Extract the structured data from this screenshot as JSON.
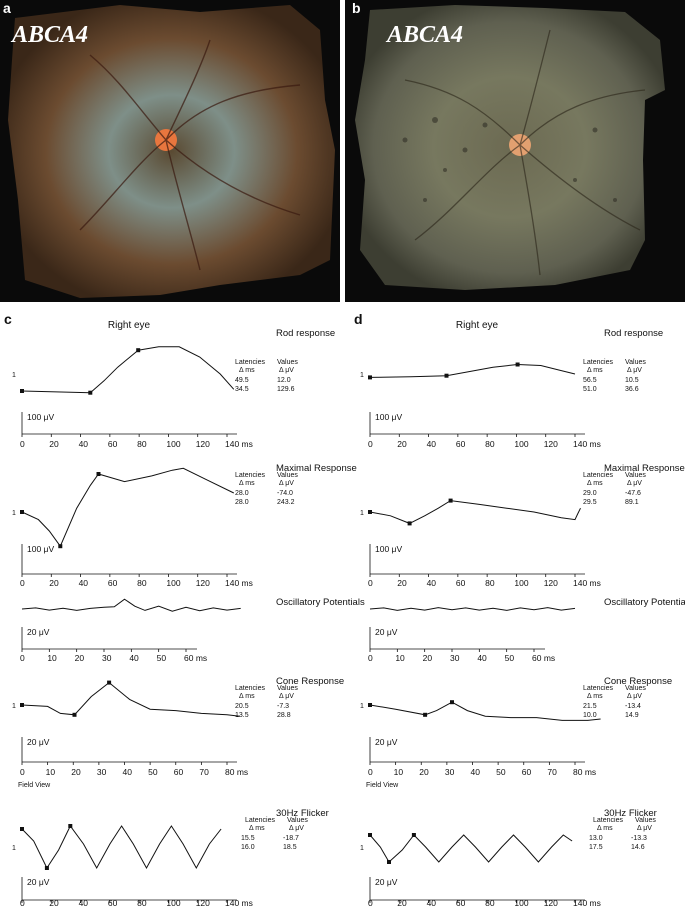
{
  "photos": [
    {
      "id": "a",
      "letter": "a",
      "gene": "ABCA4",
      "fundus": "#6b4b30",
      "halo": "#7e8f88",
      "disc": "#e8763e",
      "edge": "#1a1a1a"
    },
    {
      "id": "b",
      "letter": "b",
      "gene": "ABCA4",
      "fundus": "#5f6050",
      "halo": "#77785f",
      "disc": "#e2a070",
      "edge": "#1a1a1a"
    }
  ],
  "panels": [
    {
      "letter": "c",
      "eye_title": "Right eye",
      "field_view": "Field View",
      "sections": [
        {
          "title": "Rod response",
          "latency_header": [
            "Latencies",
            "Δ ms"
          ],
          "value_header": [
            "Values",
            "Δ μV"
          ],
          "latencies": [
            "49.5",
            "34.5"
          ],
          "values": [
            "12.0",
            "129.6"
          ],
          "scale": "100 μV",
          "ticks": [
            "0",
            "20",
            "40",
            "60",
            "80",
            "100",
            "120",
            "140 ms"
          ],
          "trace": [
            [
              0,
              -0.5
            ],
            [
              50,
              -0.55
            ],
            [
              60,
              -0.2
            ],
            [
              70,
              0.2
            ],
            [
              85,
              0.7
            ],
            [
              100,
              0.8
            ],
            [
              115,
              0.8
            ],
            [
              130,
              0.5
            ],
            [
              145,
              0.0
            ],
            [
              155,
              -0.45
            ]
          ],
          "markers": [
            [
              0,
              -0.5
            ],
            [
              50,
              -0.55
            ],
            [
              85,
              0.7
            ]
          ]
        },
        {
          "title": "Maximal Response",
          "latency_header": [
            "Latencies",
            "Δ ms"
          ],
          "value_header": [
            "Values",
            "Δ μV"
          ],
          "latencies": [
            "28.0",
            "28.0"
          ],
          "values": [
            "-74.0",
            "243.2"
          ],
          "scale": "100 μV",
          "ticks": [
            "0",
            "20",
            "40",
            "60",
            "80",
            "100",
            "120",
            "140 ms"
          ],
          "trace": [
            [
              0,
              0.0
            ],
            [
              12,
              -0.2
            ],
            [
              20,
              -0.5
            ],
            [
              28,
              -0.9
            ],
            [
              40,
              0.1
            ],
            [
              50,
              0.7
            ],
            [
              56,
              1.0
            ],
            [
              75,
              0.8
            ],
            [
              95,
              0.95
            ],
            [
              110,
              1.1
            ],
            [
              118,
              1.15
            ],
            [
              135,
              0.85
            ],
            [
              155,
              0.5
            ]
          ],
          "markers": [
            [
              0,
              0.0
            ],
            [
              28,
              -0.9
            ],
            [
              56,
              1.0
            ]
          ]
        },
        {
          "title": "Oscillatory Potentials",
          "latency_header": [],
          "value_header": [],
          "latencies": [],
          "values": [],
          "scale": "20 μV",
          "ticks": [
            "0",
            "10",
            "20",
            "30",
            "40",
            "50",
            "60 ms"
          ],
          "trace": [
            [
              0,
              0.0
            ],
            [
              4,
              0.04
            ],
            [
              8,
              -0.04
            ],
            [
              12,
              0.03
            ],
            [
              16,
              -0.05
            ],
            [
              20,
              0.02
            ],
            [
              24,
              0.06
            ],
            [
              27,
              0.08
            ],
            [
              30,
              0.35
            ],
            [
              33,
              0.1
            ],
            [
              36,
              -0.05
            ],
            [
              40,
              0.1
            ],
            [
              44,
              -0.08
            ],
            [
              48,
              0.06
            ],
            [
              52,
              -0.06
            ],
            [
              56,
              0.04
            ],
            [
              60,
              -0.04
            ],
            [
              64,
              0.02
            ]
          ],
          "markers": []
        },
        {
          "title": "Cone Response",
          "latency_header": [
            "Latencies",
            "Δ ms"
          ],
          "value_header": [
            "Values",
            "Δ μV"
          ],
          "latencies": [
            "20.5",
            "13.5"
          ],
          "values": [
            "-7.3",
            "28.8"
          ],
          "scale": "20 μV",
          "ticks": [
            "0",
            "10",
            "20",
            "30",
            "40",
            "50",
            "60",
            "70",
            "80 ms"
          ],
          "trace": [
            [
              0,
              0.0
            ],
            [
              10,
              -0.05
            ],
            [
              15,
              -0.3
            ],
            [
              20.5,
              -0.35
            ],
            [
              27,
              0.3
            ],
            [
              34,
              0.8
            ],
            [
              42,
              0.2
            ],
            [
              50,
              -0.15
            ],
            [
              60,
              -0.2
            ],
            [
              70,
              -0.3
            ],
            [
              80,
              -0.35
            ],
            [
              85,
              -0.4
            ]
          ],
          "markers": [
            [
              0,
              0.0
            ],
            [
              20.5,
              -0.35
            ],
            [
              34,
              0.8
            ]
          ]
        },
        {
          "title": "30Hz Flicker",
          "latency_header": [
            "Latencies",
            "Δ ms"
          ],
          "value_header": [
            "Values",
            "Δ μV"
          ],
          "latencies": [
            "15.5",
            "16.0"
          ],
          "values": [
            "-18.7",
            "18.5"
          ],
          "scale": "20 μV",
          "ticks": [
            "0",
            "20",
            "40",
            "60",
            "80",
            "100",
            "120",
            "140 ms"
          ],
          "trace": [
            [
              0,
              0.6
            ],
            [
              8,
              0.2
            ],
            [
              17,
              -0.7
            ],
            [
              25,
              -0.1
            ],
            [
              33,
              0.7
            ],
            [
              42,
              0.1
            ],
            [
              51,
              -0.7
            ],
            [
              60,
              0.1
            ],
            [
              68,
              0.7
            ],
            [
              76,
              0.1
            ],
            [
              85,
              -0.7
            ],
            [
              94,
              0.1
            ],
            [
              102,
              0.7
            ],
            [
              110,
              0.1
            ],
            [
              119,
              -0.7
            ],
            [
              128,
              0.1
            ],
            [
              136,
              0.6
            ]
          ],
          "markers": [
            [
              0,
              0.6
            ],
            [
              17,
              -0.7
            ],
            [
              33,
              0.7
            ]
          ]
        }
      ]
    },
    {
      "letter": "d",
      "eye_title": "Right eye",
      "field_view": "Field View",
      "sections": [
        {
          "title": "Rod response",
          "latency_header": [
            "Latencies",
            "Δ ms"
          ],
          "value_header": [
            "Values",
            "Δ μV"
          ],
          "latencies": [
            "56.5",
            "51.0"
          ],
          "values": [
            "10.5",
            "36.6"
          ],
          "scale": "100 μV",
          "ticks": [
            "0",
            "20",
            "40",
            "60",
            "80",
            "100",
            "120",
            "140 ms"
          ],
          "trace": [
            [
              0,
              -0.1
            ],
            [
              30,
              -0.08
            ],
            [
              56,
              -0.05
            ],
            [
              70,
              0.05
            ],
            [
              90,
              0.2
            ],
            [
              108,
              0.28
            ],
            [
              125,
              0.25
            ],
            [
              140,
              0.1
            ],
            [
              150,
              0.0
            ]
          ],
          "markers": [
            [
              0,
              -0.1
            ],
            [
              56,
              -0.05
            ],
            [
              108,
              0.28
            ]
          ]
        },
        {
          "title": "Maximal Response",
          "latency_header": [
            "Latencies",
            "Δ ms"
          ],
          "value_header": [
            "Values",
            "Δ μV"
          ],
          "latencies": [
            "29.0",
            "29.5"
          ],
          "values": [
            "-47.6",
            "89.1"
          ],
          "scale": "100 μV",
          "ticks": [
            "0",
            "20",
            "40",
            "60",
            "80",
            "100",
            "120",
            "140 ms"
          ],
          "trace": [
            [
              0,
              0.0
            ],
            [
              15,
              -0.1
            ],
            [
              29,
              -0.3
            ],
            [
              40,
              -0.1
            ],
            [
              50,
              0.1
            ],
            [
              59,
              0.3
            ],
            [
              80,
              0.2
            ],
            [
              100,
              0.1
            ],
            [
              120,
              0.0
            ],
            [
              140,
              -0.15
            ],
            [
              150,
              -0.2
            ],
            [
              152,
              -0.05
            ],
            [
              154,
              0.1
            ]
          ],
          "markers": [
            [
              0,
              0.0
            ],
            [
              29,
              -0.3
            ],
            [
              59,
              0.3
            ]
          ]
        },
        {
          "title": "Oscillatory Potentials",
          "latency_header": [],
          "value_header": [],
          "latencies": [],
          "values": [],
          "scale": "20 μV",
          "ticks": [
            "0",
            "10",
            "20",
            "30",
            "40",
            "50",
            "60 ms"
          ],
          "trace": [
            [
              0,
              0.0
            ],
            [
              4,
              0.04
            ],
            [
              8,
              -0.05
            ],
            [
              12,
              0.03
            ],
            [
              16,
              -0.04
            ],
            [
              20,
              0.05
            ],
            [
              24,
              -0.03
            ],
            [
              28,
              0.04
            ],
            [
              32,
              -0.04
            ],
            [
              36,
              0.03
            ],
            [
              40,
              -0.05
            ],
            [
              44,
              0.04
            ],
            [
              48,
              -0.03
            ],
            [
              52,
              0.05
            ],
            [
              56,
              -0.04
            ],
            [
              60,
              0.02
            ]
          ],
          "markers": []
        },
        {
          "title": "Cone Response",
          "latency_header": [
            "Latencies",
            "Δ ms"
          ],
          "value_header": [
            "Values",
            "Δ μV"
          ],
          "latencies": [
            "21.5",
            "10.0"
          ],
          "values": [
            "-13.4",
            "14.9"
          ],
          "scale": "20 μV",
          "ticks": [
            "0",
            "10",
            "20",
            "30",
            "40",
            "50",
            "60",
            "70",
            "80 ms"
          ],
          "trace": [
            [
              0,
              0.0
            ],
            [
              10,
              -0.15
            ],
            [
              21.5,
              -0.35
            ],
            [
              26,
              -0.2
            ],
            [
              32,
              0.1
            ],
            [
              38,
              -0.2
            ],
            [
              45,
              -0.4
            ],
            [
              55,
              -0.45
            ],
            [
              65,
              -0.45
            ],
            [
              75,
              -0.55
            ],
            [
              85,
              -0.55
            ],
            [
              90,
              -0.5
            ]
          ],
          "markers": [
            [
              0,
              0.0
            ],
            [
              21.5,
              -0.35
            ],
            [
              32,
              0.1
            ]
          ]
        },
        {
          "title": "30Hz Flicker",
          "latency_header": [
            "Latencies",
            "Δ ms"
          ],
          "value_header": [
            "Values",
            "Δ μV"
          ],
          "latencies": [
            "13.0",
            "17.5"
          ],
          "values": [
            "-13.3",
            "14.6"
          ],
          "scale": "20 μV",
          "ticks": [
            "0",
            "20",
            "40",
            "60",
            "80",
            "100",
            "120",
            "140 ms"
          ],
          "trace": [
            [
              0,
              0.4
            ],
            [
              7,
              0.0
            ],
            [
              13,
              -0.5
            ],
            [
              22,
              -0.1
            ],
            [
              30,
              0.4
            ],
            [
              38,
              0.0
            ],
            [
              47,
              -0.5
            ],
            [
              56,
              0.0
            ],
            [
              64,
              0.4
            ],
            [
              72,
              0.0
            ],
            [
              81,
              -0.5
            ],
            [
              90,
              0.0
            ],
            [
              98,
              0.4
            ],
            [
              106,
              0.0
            ],
            [
              115,
              -0.5
            ],
            [
              124,
              0.0
            ],
            [
              132,
              0.4
            ],
            [
              138,
              0.2
            ]
          ],
          "markers": [
            [
              0,
              0.4
            ],
            [
              13,
              -0.5
            ],
            [
              30,
              0.4
            ]
          ]
        }
      ]
    }
  ]
}
